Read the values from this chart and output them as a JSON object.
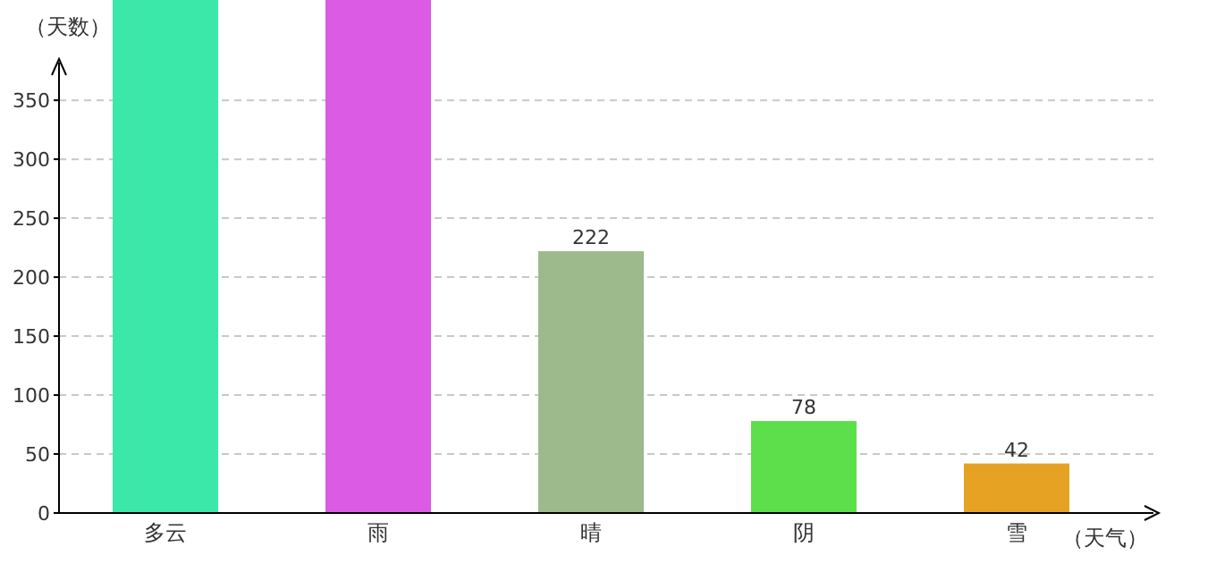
{
  "chart_data": {
    "type": "bar",
    "ylabel": "（天数）",
    "xlabel": "（天气）",
    "categories": [
      "多云",
      "雨",
      "晴",
      "阴",
      "雪"
    ],
    "values": [
      435,
      435,
      222,
      78,
      42
    ],
    "colors": [
      "#3be8aa",
      "#dc5be5",
      "#9cba8c",
      "#5ddf4b",
      "#e6a222"
    ],
    "value_labels": [
      null,
      null,
      "222",
      "78",
      "42"
    ],
    "ylim": [
      0,
      435
    ],
    "yticks": [
      0,
      50,
      100,
      150,
      200,
      250,
      300,
      350
    ],
    "grid": "y"
  }
}
